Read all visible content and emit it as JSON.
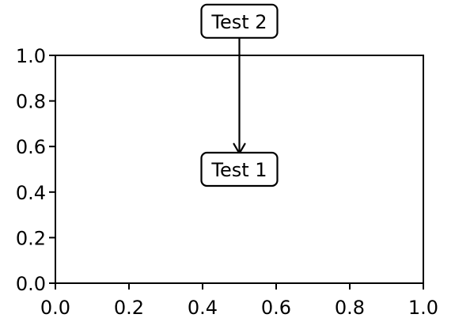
{
  "chart_data": {
    "type": "scatter",
    "title": "",
    "xlabel": "",
    "ylabel": "",
    "xlim": [
      0.0,
      1.0
    ],
    "ylim": [
      0.0,
      1.0
    ],
    "grid": false,
    "x_ticks": [
      0.0,
      0.2,
      0.4,
      0.6,
      0.8,
      1.0
    ],
    "y_ticks": [
      0.0,
      0.2,
      0.4,
      0.6,
      0.8,
      1.0
    ],
    "x_tick_labels": [
      "0.0",
      "0.2",
      "0.4",
      "0.6",
      "0.8",
      "1.0"
    ],
    "y_tick_labels": [
      "0.0",
      "0.2",
      "0.4",
      "0.6",
      "0.8",
      "1.0"
    ],
    "series": [],
    "annotations": [
      {
        "id": "test1",
        "text": "Test 1",
        "x": 0.5,
        "y": 0.5
      },
      {
        "id": "test2",
        "text": "Test 2",
        "x": 0.5,
        "y": 1.15,
        "arrow_to": [
          0.5,
          0.57
        ]
      }
    ],
    "colors": {
      "axes": "#000000",
      "background": "#ffffff",
      "box_fill": "#ffffff",
      "box_edge": "#000000"
    }
  }
}
